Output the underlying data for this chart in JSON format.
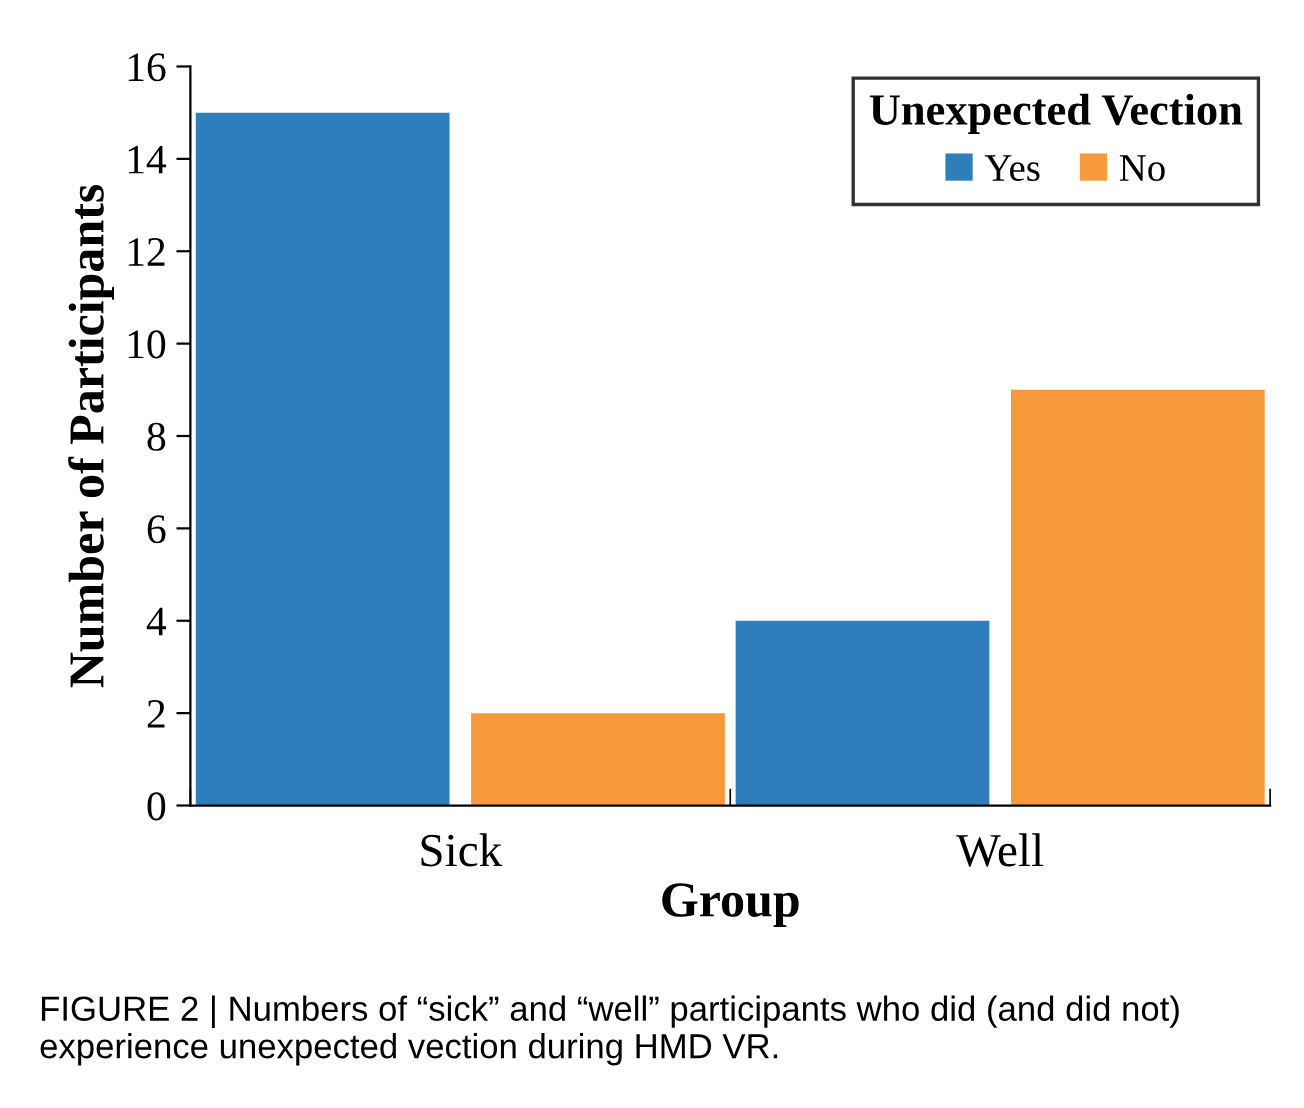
{
  "chart_data": {
    "type": "bar",
    "xlabel": "Group",
    "ylabel": "Number of Participants",
    "legend_title": "Unexpected Vection",
    "categories": [
      "Sick",
      "Well"
    ],
    "series": [
      {
        "name": "Yes",
        "color": "#2e7ebc",
        "values": [
          15,
          4
        ]
      },
      {
        "name": "No",
        "color": "#f79a3c",
        "values": [
          2,
          9
        ]
      }
    ],
    "ylim": [
      0,
      16
    ],
    "yticks": [
      0,
      2,
      4,
      6,
      8,
      10,
      12,
      14,
      16
    ],
    "grid": false,
    "legend": "top right",
    "annotations": [
      "FIGURE 2 | Numbers of “sick” and “well” participants who did (and did not) experience unexpected vection during HMD VR."
    ]
  }
}
